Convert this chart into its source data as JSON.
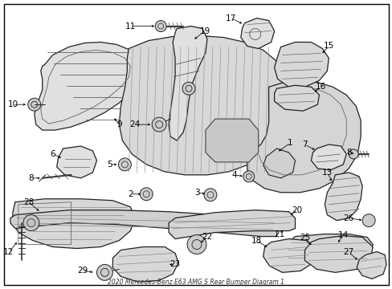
{
  "title": "2020 Mercedes-Benz E63 AMG S Rear Bumper Diagram 1",
  "background_color": "#ffffff",
  "border_color": "#000000",
  "fig_width": 4.89,
  "fig_height": 3.6,
  "dpi": 100,
  "label_fontsize": 7.5,
  "label_color": "#000000",
  "line_color": "#000000",
  "part_fill": "#e8e8e8",
  "part_edge": "#222222"
}
